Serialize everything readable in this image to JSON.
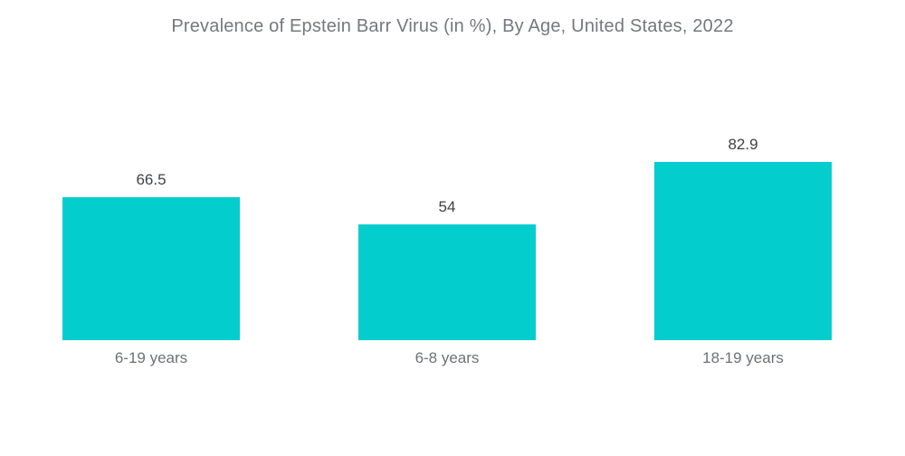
{
  "page": {
    "background_color": "#ffffff"
  },
  "chart_data": {
    "type": "bar",
    "title": "Prevalence of Epstein Barr Virus (in %), By Age, United States, 2022",
    "categories": [
      "6-19 years",
      "6-8 years",
      "18-19 years"
    ],
    "values": [
      66.5,
      54,
      82.9
    ],
    "value_labels": [
      "66.5",
      "54",
      "82.9"
    ],
    "xlabel": "",
    "ylabel": "",
    "ylim": [
      0,
      100
    ],
    "grid": false,
    "legend": false,
    "axes_visible": false,
    "bar_color": "#04cdce",
    "title_color": "#75787c",
    "value_label_color": "#3f4144",
    "category_label_color": "#6e7175"
  }
}
